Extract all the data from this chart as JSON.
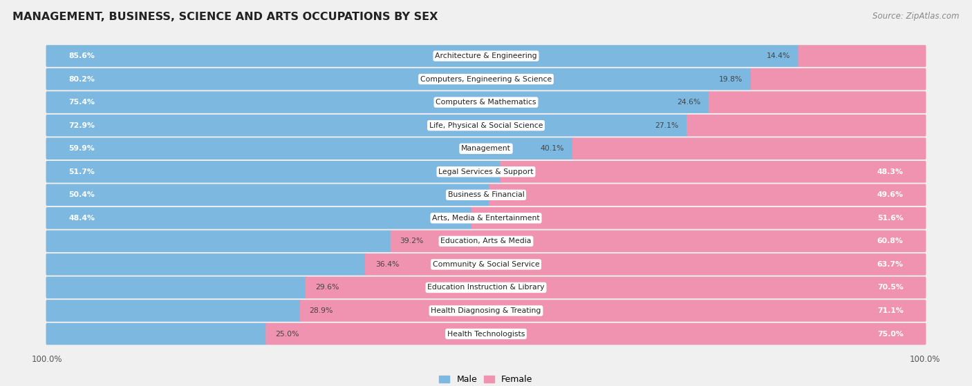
{
  "title": "MANAGEMENT, BUSINESS, SCIENCE AND ARTS OCCUPATIONS BY SEX",
  "source": "Source: ZipAtlas.com",
  "categories": [
    "Architecture & Engineering",
    "Computers, Engineering & Science",
    "Computers & Mathematics",
    "Life, Physical & Social Science",
    "Management",
    "Legal Services & Support",
    "Business & Financial",
    "Arts, Media & Entertainment",
    "Education, Arts & Media",
    "Community & Social Service",
    "Education Instruction & Library",
    "Health Diagnosing & Treating",
    "Health Technologists"
  ],
  "male_pct": [
    85.6,
    80.2,
    75.4,
    72.9,
    59.9,
    51.7,
    50.4,
    48.4,
    39.2,
    36.4,
    29.6,
    28.9,
    25.0
  ],
  "female_pct": [
    14.4,
    19.8,
    24.6,
    27.1,
    40.1,
    48.3,
    49.6,
    51.6,
    60.8,
    63.7,
    70.5,
    71.1,
    75.0
  ],
  "male_color": "#7db8e0",
  "female_color": "#f093b0",
  "bg_color": "#f0f0f0",
  "row_bg_color": "#e0e0e0",
  "title_fontsize": 11.5,
  "label_fontsize": 7.8,
  "pct_fontsize": 7.8,
  "legend_fontsize": 9,
  "source_fontsize": 8.5
}
